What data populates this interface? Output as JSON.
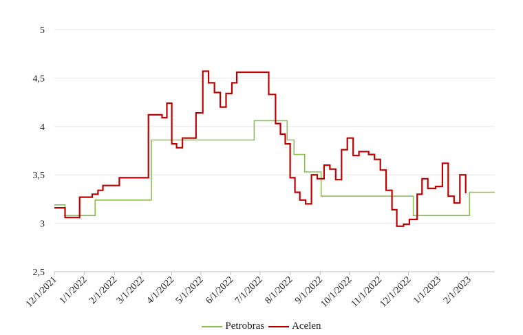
{
  "chart_data": {
    "type": "line",
    "title": "",
    "xlabel": "",
    "ylabel": "",
    "ylim": [
      2.5,
      5
    ],
    "yticks": [
      "5",
      "4,5",
      "4",
      "3,5",
      "3",
      "2,5"
    ],
    "ytick_values": [
      5,
      4.5,
      4,
      3.5,
      3,
      2.5
    ],
    "xticks": [
      "12/1/2021",
      "1/1/2022",
      "2/1/2022",
      "3/1/2022",
      "4/1/2022",
      "5/1/2022",
      "6/1/2022",
      "7/1/2022",
      "8/1/2022",
      "9/1/2022",
      "10/1/2022",
      "11/1/2022",
      "12/1/2022",
      "1/1/2023",
      "2/1/2023"
    ],
    "legend_position": "bottom",
    "grid": true,
    "series": [
      {
        "name": "Petrobras",
        "color": "#8cc152",
        "points": [
          [
            "2021-12-01",
            3.19
          ],
          [
            "2021-12-12",
            3.19
          ],
          [
            "2021-12-12",
            3.08
          ],
          [
            "2022-01-12",
            3.08
          ],
          [
            "2022-01-12",
            3.24
          ],
          [
            "2022-03-11",
            3.24
          ],
          [
            "2022-03-11",
            3.86
          ],
          [
            "2022-06-25",
            3.86
          ],
          [
            "2022-06-25",
            4.06
          ],
          [
            "2022-07-29",
            4.06
          ],
          [
            "2022-07-29",
            3.86
          ],
          [
            "2022-08-05",
            3.86
          ],
          [
            "2022-08-05",
            3.71
          ],
          [
            "2022-08-16",
            3.71
          ],
          [
            "2022-08-16",
            3.53
          ],
          [
            "2022-09-02",
            3.53
          ],
          [
            "2022-09-02",
            3.28
          ],
          [
            "2022-12-06",
            3.28
          ],
          [
            "2022-12-06",
            3.08
          ],
          [
            "2023-02-02",
            3.08
          ],
          [
            "2023-02-02",
            3.32
          ],
          [
            "2023-02-28",
            3.32
          ]
        ]
      },
      {
        "name": "Acelen",
        "color": "#c00000",
        "points": [
          [
            "2021-12-01",
            3.16
          ],
          [
            "2021-12-12",
            3.16
          ],
          [
            "2021-12-12",
            3.06
          ],
          [
            "2021-12-27",
            3.06
          ],
          [
            "2021-12-27",
            3.27
          ],
          [
            "2022-01-09",
            3.27
          ],
          [
            "2022-01-09",
            3.3
          ],
          [
            "2022-01-15",
            3.3
          ],
          [
            "2022-01-15",
            3.34
          ],
          [
            "2022-01-20",
            3.34
          ],
          [
            "2022-01-20",
            3.39
          ],
          [
            "2022-02-06",
            3.39
          ],
          [
            "2022-02-06",
            3.47
          ],
          [
            "2022-03-08",
            3.47
          ],
          [
            "2022-03-08",
            4.12
          ],
          [
            "2022-03-22",
            4.12
          ],
          [
            "2022-03-22",
            4.09
          ],
          [
            "2022-03-27",
            4.09
          ],
          [
            "2022-03-27",
            4.24
          ],
          [
            "2022-04-01",
            4.24
          ],
          [
            "2022-04-01",
            3.82
          ],
          [
            "2022-04-06",
            3.82
          ],
          [
            "2022-04-06",
            3.78
          ],
          [
            "2022-04-12",
            3.78
          ],
          [
            "2022-04-12",
            3.88
          ],
          [
            "2022-04-26",
            3.88
          ],
          [
            "2022-04-26",
            4.14
          ],
          [
            "2022-05-03",
            4.14
          ],
          [
            "2022-05-03",
            4.57
          ],
          [
            "2022-05-09",
            4.57
          ],
          [
            "2022-05-09",
            4.45
          ],
          [
            "2022-05-15",
            4.45
          ],
          [
            "2022-05-15",
            4.35
          ],
          [
            "2022-05-21",
            4.35
          ],
          [
            "2022-05-21",
            4.2
          ],
          [
            "2022-05-27",
            4.2
          ],
          [
            "2022-05-27",
            4.34
          ],
          [
            "2022-06-02",
            4.34
          ],
          [
            "2022-06-02",
            4.45
          ],
          [
            "2022-06-07",
            4.45
          ],
          [
            "2022-06-07",
            4.56
          ],
          [
            "2022-07-10",
            4.56
          ],
          [
            "2022-07-10",
            4.33
          ],
          [
            "2022-07-17",
            4.33
          ],
          [
            "2022-07-17",
            4.03
          ],
          [
            "2022-07-22",
            4.03
          ],
          [
            "2022-07-22",
            3.92
          ],
          [
            "2022-07-27",
            3.92
          ],
          [
            "2022-07-27",
            3.82
          ],
          [
            "2022-08-01",
            3.82
          ],
          [
            "2022-08-01",
            3.47
          ],
          [
            "2022-08-06",
            3.47
          ],
          [
            "2022-08-06",
            3.32
          ],
          [
            "2022-08-11",
            3.32
          ],
          [
            "2022-08-11",
            3.24
          ],
          [
            "2022-08-17",
            3.24
          ],
          [
            "2022-08-17",
            3.2
          ],
          [
            "2022-08-23",
            3.2
          ],
          [
            "2022-08-23",
            3.5
          ],
          [
            "2022-08-29",
            3.5
          ],
          [
            "2022-08-29",
            3.46
          ],
          [
            "2022-09-05",
            3.46
          ],
          [
            "2022-09-05",
            3.6
          ],
          [
            "2022-09-11",
            3.6
          ],
          [
            "2022-09-11",
            3.56
          ],
          [
            "2022-09-17",
            3.56
          ],
          [
            "2022-09-17",
            3.45
          ],
          [
            "2022-09-23",
            3.45
          ],
          [
            "2022-09-23",
            3.76
          ],
          [
            "2022-09-29",
            3.76
          ],
          [
            "2022-09-29",
            3.88
          ],
          [
            "2022-10-05",
            3.88
          ],
          [
            "2022-10-05",
            3.7
          ],
          [
            "2022-10-11",
            3.7
          ],
          [
            "2022-10-11",
            3.74
          ],
          [
            "2022-10-21",
            3.74
          ],
          [
            "2022-10-21",
            3.71
          ],
          [
            "2022-10-27",
            3.71
          ],
          [
            "2022-10-27",
            3.66
          ],
          [
            "2022-11-02",
            3.66
          ],
          [
            "2022-11-02",
            3.55
          ],
          [
            "2022-11-08",
            3.55
          ],
          [
            "2022-11-08",
            3.34
          ],
          [
            "2022-11-14",
            3.34
          ],
          [
            "2022-11-14",
            3.14
          ],
          [
            "2022-11-19",
            3.14
          ],
          [
            "2022-11-19",
            2.97
          ],
          [
            "2022-11-26",
            2.97
          ],
          [
            "2022-11-26",
            2.99
          ],
          [
            "2022-12-02",
            2.99
          ],
          [
            "2022-12-02",
            3.04
          ],
          [
            "2022-12-10",
            3.04
          ],
          [
            "2022-12-10",
            3.3
          ],
          [
            "2022-12-15",
            3.3
          ],
          [
            "2022-12-15",
            3.46
          ],
          [
            "2022-12-21",
            3.46
          ],
          [
            "2022-12-21",
            3.36
          ],
          [
            "2022-12-29",
            3.36
          ],
          [
            "2022-12-29",
            3.38
          ],
          [
            "2023-01-05",
            3.38
          ],
          [
            "2023-01-05",
            3.62
          ],
          [
            "2023-01-11",
            3.62
          ],
          [
            "2023-01-11",
            3.28
          ],
          [
            "2023-01-17",
            3.28
          ],
          [
            "2023-01-17",
            3.21
          ],
          [
            "2023-01-23",
            3.21
          ],
          [
            "2023-01-23",
            3.5
          ],
          [
            "2023-01-29",
            3.5
          ],
          [
            "2023-01-29",
            3.31
          ]
        ]
      }
    ]
  }
}
